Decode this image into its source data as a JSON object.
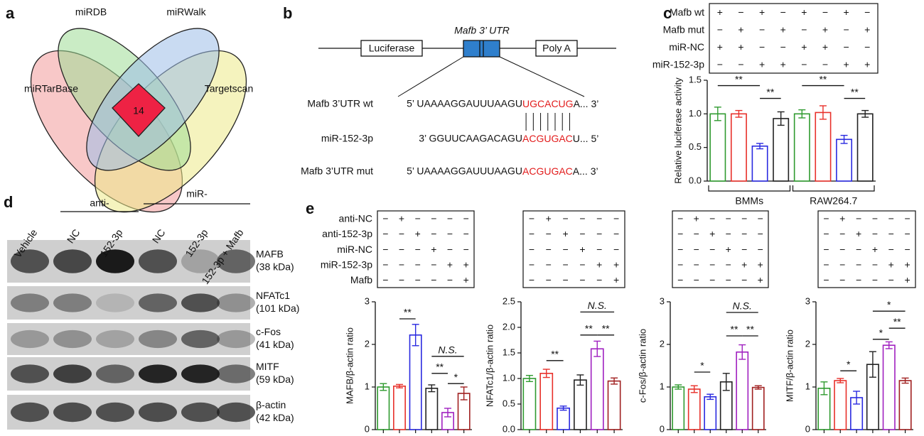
{
  "panel_labels": [
    "a",
    "b",
    "c",
    "d",
    "e"
  ],
  "venn": {
    "sets": [
      "miRDB",
      "miRWalk",
      "miRTarBase",
      "Targetscan"
    ],
    "intersection": "14"
  },
  "construct": {
    "title": "Mafb 3’ UTR",
    "boxes": [
      "Luciferase",
      "Poly A"
    ],
    "rows": [
      {
        "label": "Mafb 3’UTR wt",
        "seq": [
          "5’ UAAAAGGAUUUAAGU",
          "UGCACUG",
          "A... 3’"
        ]
      },
      {
        "label": "miR-152-3p",
        "seq": [
          "3’ GGUUCAAGACAGU",
          "ACGUGAC",
          "U... 5’"
        ]
      },
      {
        "label": "Mafb 3’UTR mut",
        "seq": [
          "5’ UAAAAGGAUUUAAGU",
          "ACGUGAC",
          "A... 3’"
        ]
      }
    ]
  },
  "blot": {
    "group_labels": [
      "anti-",
      "miR-"
    ],
    "lanes": [
      "Vehicle",
      "NC",
      "152-3p",
      "NC",
      "152-3p",
      "152-3p + Mafb"
    ],
    "rows": [
      {
        "name": "MAFB",
        "size": "(38 kDa)"
      },
      {
        "name": "NFATc1",
        "size": "(101 kDa)"
      },
      {
        "name": "c-Fos",
        "size": "(41 kDa)"
      },
      {
        "name": "MITF",
        "size": "(59 kDa)"
      },
      {
        "name": "β-actin",
        "size": "(42 kDa)"
      }
    ]
  },
  "chart_data": [
    {
      "type": "bar",
      "ylabel": "Relative luciferase activity",
      "values": [
        1.0,
        1.0,
        0.52,
        0.93,
        1.0,
        1.02,
        0.62,
        1.0
      ],
      "errors": [
        0.1,
        0.05,
        0.04,
        0.1,
        0.06,
        0.1,
        0.06,
        0.05
      ],
      "colors": [
        "#2f9a2f",
        "#e8302a",
        "#2a2ae0",
        "#222222",
        "#2f9a2f",
        "#e8302a",
        "#2a2ae0",
        "#222222"
      ],
      "ylim": [
        0,
        1.5
      ],
      "yticks": [
        {
          "value": 0,
          "label": "0.0"
        },
        0.5,
        {
          "value": 1,
          "label": "1.0"
        },
        1.5
      ],
      "groups": [
        "BMMs",
        "RAW264.7"
      ],
      "annotations": [
        "**",
        "**",
        "**",
        "**"
      ],
      "sign_table": {
        "rows": [
          {
            "label": "Mafb wt",
            "signs": [
              "+",
              "−",
              "+",
              "−",
              "+",
              "−",
              "+",
              "−"
            ]
          },
          {
            "label": "Mafb mut",
            "signs": [
              "−",
              "+",
              "−",
              "+",
              "−",
              "+",
              "−",
              "+"
            ]
          },
          {
            "label": "miR-NC",
            "signs": [
              "+",
              "+",
              "−",
              "−",
              "+",
              "+",
              "−",
              "−"
            ]
          },
          {
            "label": "miR-152-3p",
            "signs": [
              "−",
              "−",
              "+",
              "+",
              "−",
              "−",
              "+",
              "+"
            ]
          }
        ]
      }
    },
    {
      "type": "bar",
      "ylabel": "MAFB/β-actin ratio",
      "values": [
        1.0,
        1.02,
        2.22,
        0.97,
        0.4,
        0.85
      ],
      "errors": [
        0.08,
        0.04,
        0.25,
        0.08,
        0.1,
        0.15
      ],
      "colors": [
        "#2f9a2f",
        "#e8302a",
        "#2a2ae0",
        "#222222",
        "#a020c0",
        "#a02020"
      ],
      "ylim": [
        0,
        3
      ],
      "yticks": [
        0,
        1,
        2,
        3
      ],
      "annotations": [
        "**",
        "N.S.",
        "**",
        "*"
      ],
      "sign_table": {
        "rows": [
          {
            "label": "anti-NC",
            "signs": [
              "−",
              "+",
              "−",
              "−",
              "−",
              "−"
            ]
          },
          {
            "label": "anti-152-3p",
            "signs": [
              "−",
              "−",
              "+",
              "−",
              "−",
              "−"
            ]
          },
          {
            "label": "miR-NC",
            "signs": [
              "−",
              "−",
              "−",
              "+",
              "−",
              "−"
            ]
          },
          {
            "label": "miR-152-3p",
            "signs": [
              "−",
              "−",
              "−",
              "−",
              "+",
              "+"
            ]
          },
          {
            "label": "Mafb",
            "signs": [
              "−",
              "−",
              "−",
              "−",
              "−",
              "+"
            ]
          }
        ]
      }
    },
    {
      "type": "bar",
      "ylabel": "NFATc1/β-actin ratio",
      "values": [
        1.0,
        1.1,
        0.42,
        0.97,
        1.58,
        0.95
      ],
      "errors": [
        0.06,
        0.08,
        0.04,
        0.1,
        0.15,
        0.06
      ],
      "colors": [
        "#2f9a2f",
        "#e8302a",
        "#2a2ae0",
        "#222222",
        "#a020c0",
        "#a02020"
      ],
      "ylim": [
        0,
        2.5
      ],
      "yticks": [
        {
          "value": 0,
          "label": "0.0"
        },
        0.5,
        {
          "value": 1,
          "label": "1.0"
        },
        1.5,
        {
          "value": 2,
          "label": "2.0"
        },
        2.5
      ],
      "annotations": [
        "**",
        "N.S.",
        "**",
        "**"
      ],
      "sign_table": {
        "rows": [
          {
            "signs": [
              "−",
              "+",
              "−",
              "−",
              "−",
              "−"
            ]
          },
          {
            "signs": [
              "−",
              "−",
              "+",
              "−",
              "−",
              "−"
            ]
          },
          {
            "signs": [
              "−",
              "−",
              "−",
              "+",
              "−",
              "−"
            ]
          },
          {
            "signs": [
              "−",
              "−",
              "−",
              "−",
              "+",
              "+"
            ]
          },
          {
            "signs": [
              "−",
              "−",
              "−",
              "−",
              "−",
              "+"
            ]
          }
        ]
      }
    },
    {
      "type": "bar",
      "ylabel": "c-Fos/β-actin ratio",
      "values": [
        1.0,
        0.95,
        0.77,
        1.12,
        1.82,
        0.99
      ],
      "errors": [
        0.05,
        0.08,
        0.06,
        0.2,
        0.17,
        0.04
      ],
      "colors": [
        "#2f9a2f",
        "#e8302a",
        "#2a2ae0",
        "#222222",
        "#a020c0",
        "#a02020"
      ],
      "ylim": [
        0,
        3
      ],
      "yticks": [
        0,
        1,
        2,
        3
      ],
      "annotations": [
        "*",
        "N.S.",
        "**",
        "**"
      ],
      "sign_table": {
        "rows": [
          {
            "signs": [
              "−",
              "+",
              "−",
              "−",
              "−",
              "−"
            ]
          },
          {
            "signs": [
              "−",
              "−",
              "+",
              "−",
              "−",
              "−"
            ]
          },
          {
            "signs": [
              "−",
              "−",
              "−",
              "+",
              "−",
              "−"
            ]
          },
          {
            "signs": [
              "−",
              "−",
              "−",
              "−",
              "+",
              "+"
            ]
          },
          {
            "signs": [
              "−",
              "−",
              "−",
              "−",
              "−",
              "+"
            ]
          }
        ]
      }
    },
    {
      "type": "bar",
      "ylabel": "MITF/β-actin ratio",
      "values": [
        0.97,
        1.15,
        0.75,
        1.53,
        1.98,
        1.15
      ],
      "errors": [
        0.15,
        0.05,
        0.15,
        0.3,
        0.08,
        0.06
      ],
      "colors": [
        "#2f9a2f",
        "#e8302a",
        "#2a2ae0",
        "#222222",
        "#a020c0",
        "#a02020"
      ],
      "ylim": [
        0,
        3
      ],
      "yticks": [
        0,
        1,
        2,
        3
      ],
      "annotations": [
        "*",
        "**",
        "*",
        "*"
      ],
      "sign_table": {
        "rows": [
          {
            "signs": [
              "−",
              "+",
              "−",
              "−",
              "−",
              "−"
            ]
          },
          {
            "signs": [
              "−",
              "−",
              "+",
              "−",
              "−",
              "−"
            ]
          },
          {
            "signs": [
              "−",
              "−",
              "−",
              "+",
              "−",
              "−"
            ]
          },
          {
            "signs": [
              "−",
              "−",
              "−",
              "−",
              "+",
              "+"
            ]
          },
          {
            "signs": [
              "−",
              "−",
              "−",
              "−",
              "−",
              "+"
            ]
          }
        ]
      }
    }
  ]
}
